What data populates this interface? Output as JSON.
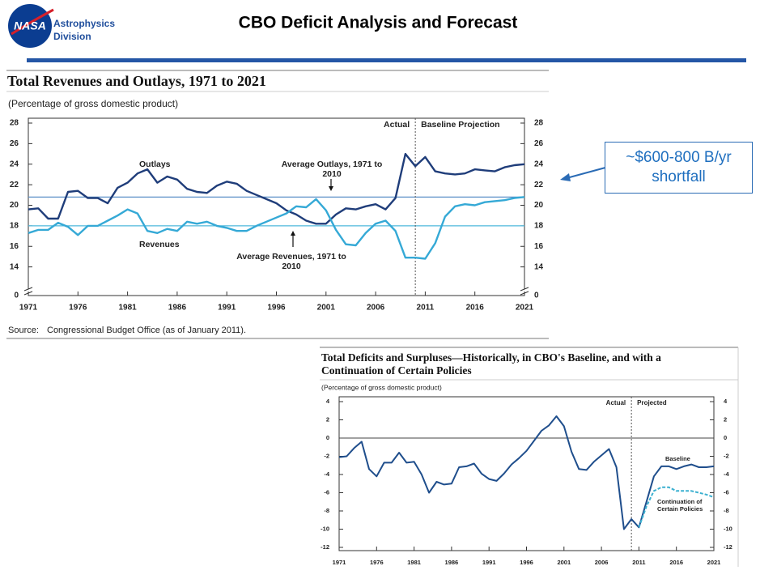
{
  "header": {
    "logo_text": "NASA",
    "org_lines": [
      "Astrophysics",
      "Division"
    ],
    "title": "CBO Deficit Analysis and Forecast"
  },
  "callout": "~$600-800 B/yr shortfall",
  "chart_data": [
    {
      "type": "line",
      "title": "Total Revenues and Outlays, 1971 to 2021",
      "subtitle": "(Percentage of gross domestic product)",
      "source_label": "Source:",
      "source": "Congressional Budget Office (as of January 2011).",
      "x": [
        1971,
        1972,
        1973,
        1974,
        1975,
        1976,
        1977,
        1978,
        1979,
        1980,
        1981,
        1982,
        1983,
        1984,
        1985,
        1986,
        1987,
        1988,
        1989,
        1990,
        1991,
        1992,
        1993,
        1994,
        1995,
        1996,
        1997,
        1998,
        1999,
        2000,
        2001,
        2002,
        2003,
        2004,
        2005,
        2006,
        2007,
        2008,
        2009,
        2010,
        2011,
        2012,
        2013,
        2014,
        2015,
        2016,
        2017,
        2018,
        2019,
        2020,
        2021
      ],
      "series": [
        {
          "name": "Outlays",
          "color": "#1f3d7a",
          "values": [
            19.6,
            19.7,
            18.7,
            18.7,
            21.3,
            21.4,
            20.7,
            20.7,
            20.2,
            21.7,
            22.2,
            23.1,
            23.5,
            22.2,
            22.8,
            22.5,
            21.6,
            21.3,
            21.2,
            21.9,
            22.3,
            22.1,
            21.4,
            21.0,
            20.6,
            20.2,
            19.5,
            19.1,
            18.5,
            18.2,
            18.2,
            19.1,
            19.7,
            19.6,
            19.9,
            20.1,
            19.6,
            20.7,
            25.0,
            23.8,
            24.7,
            23.3,
            23.1,
            23.0,
            23.1,
            23.5,
            23.4,
            23.3,
            23.7,
            23.9,
            24.0
          ]
        },
        {
          "name": "Revenues",
          "color": "#35a9d6",
          "values": [
            17.3,
            17.6,
            17.6,
            18.3,
            17.9,
            17.1,
            18.0,
            18.0,
            18.5,
            19.0,
            19.6,
            19.2,
            17.5,
            17.3,
            17.7,
            17.5,
            18.4,
            18.2,
            18.4,
            18.0,
            17.8,
            17.5,
            17.5,
            18.0,
            18.4,
            18.8,
            19.2,
            19.9,
            19.8,
            20.6,
            19.5,
            17.6,
            16.2,
            16.1,
            17.3,
            18.2,
            18.5,
            17.5,
            14.9,
            14.9,
            14.8,
            16.3,
            18.9,
            19.9,
            20.1,
            20.0,
            20.3,
            20.4,
            20.5,
            20.7,
            20.8
          ]
        }
      ],
      "reference_lines": [
        {
          "label": "Average Outlays, 1971 to 2010",
          "value": 20.8,
          "color": "#5b8fc7"
        },
        {
          "label": "Average Revenues, 1971 to 2010",
          "value": 18.0,
          "color": "#4fb8dc"
        }
      ],
      "divider": {
        "value": 2010,
        "left_label": "Actual",
        "right_label": "Baseline Projection"
      },
      "xlim": [
        1971,
        2021
      ],
      "xticks": [
        1971,
        1976,
        1981,
        1986,
        1991,
        1996,
        2001,
        2006,
        2011,
        2016,
        2021
      ],
      "ylim": [
        0,
        28
      ],
      "ybreak": [
        0,
        12
      ],
      "yticks": [
        0,
        14,
        16,
        18,
        20,
        22,
        24,
        26,
        28
      ]
    },
    {
      "type": "line",
      "title": "Total Deficits and Surpluses—Historically, in CBO's Baseline, and with a Continuation of Certain Policies",
      "subtitle": "(Percentage of gross domestic product)",
      "x": [
        1971,
        1972,
        1973,
        1974,
        1975,
        1976,
        1977,
        1978,
        1979,
        1980,
        1981,
        1982,
        1983,
        1984,
        1985,
        1986,
        1987,
        1988,
        1989,
        1990,
        1991,
        1992,
        1993,
        1994,
        1995,
        1996,
        1997,
        1998,
        1999,
        2000,
        2001,
        2002,
        2003,
        2004,
        2005,
        2006,
        2007,
        2008,
        2009,
        2010,
        2011,
        2012,
        2013,
        2014,
        2015,
        2016,
        2017,
        2018,
        2019,
        2020,
        2021
      ],
      "series": [
        {
          "name": "Baseline",
          "color": "#1f4e8c",
          "values": [
            -2.1,
            -2.0,
            -1.1,
            -0.4,
            -3.4,
            -4.2,
            -2.7,
            -2.7,
            -1.6,
            -2.7,
            -2.6,
            -4.0,
            -6.0,
            -4.8,
            -5.1,
            -5.0,
            -3.2,
            -3.1,
            -2.8,
            -3.9,
            -4.5,
            -4.7,
            -3.9,
            -2.9,
            -2.2,
            -1.4,
            -0.3,
            0.8,
            1.4,
            2.4,
            1.3,
            -1.5,
            -3.4,
            -3.5,
            -2.6,
            -1.9,
            -1.2,
            -3.2,
            -10.0,
            -8.9,
            -9.8,
            -7.0,
            -4.2,
            -3.1,
            -3.1,
            -3.4,
            -3.1,
            -2.9,
            -3.2,
            -3.2,
            -3.1
          ]
        },
        {
          "name": "Continuation of Certain Policies",
          "color": "#3bb0d0",
          "dashed": true,
          "values": [
            null,
            null,
            null,
            null,
            null,
            null,
            null,
            null,
            null,
            null,
            null,
            null,
            null,
            null,
            null,
            null,
            null,
            null,
            null,
            null,
            null,
            null,
            null,
            null,
            null,
            null,
            null,
            null,
            null,
            null,
            null,
            null,
            null,
            null,
            null,
            null,
            null,
            null,
            null,
            null,
            -9.8,
            -7.5,
            -5.8,
            -5.4,
            -5.4,
            -5.8,
            -5.8,
            -5.8,
            -6.0,
            -6.2,
            -6.5
          ]
        }
      ],
      "divider": {
        "value": 2010,
        "left_label": "Actual",
        "right_label": "Projected"
      },
      "xlim": [
        1971,
        2021
      ],
      "xticks": [
        1971,
        1976,
        1981,
        1986,
        1991,
        1996,
        2001,
        2006,
        2011,
        2016,
        2021
      ],
      "ylim": [
        -12,
        4
      ],
      "yticks": [
        -12,
        -10,
        -8,
        -6,
        -4,
        -2,
        0,
        2,
        4
      ]
    }
  ]
}
